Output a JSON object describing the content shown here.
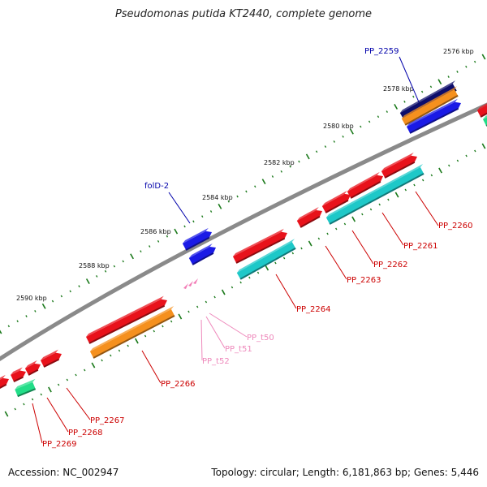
{
  "title": "Pseudomonas putida KT2440, complete genome",
  "footer": {
    "accession": "Accession: NC_002947",
    "summary": "Topology: circular; Length: 6,181,863 bp; Genes: 5,446"
  },
  "colors": {
    "backbone": "#8a8a8a",
    "ticks": "#1c7a1c",
    "gene_red": "#e8121b",
    "gene_orange": "#f5901e",
    "gene_blue": "#1a1ae6",
    "gene_navy": "#0d0d6b",
    "gene_cyan": "#1ec8c8",
    "gene_green": "#22dd88",
    "trna_pink": "#f27bb5",
    "label_red": "#cc0000",
    "label_blue": "#0000aa",
    "label_pink": "#ee88bb"
  },
  "scale": {
    "unit": "kbp",
    "labels": [
      "2576 kbp",
      "2578 kbp",
      "2580 kbp",
      "2582 kbp",
      "2584 kbp",
      "2586 kbp",
      "2588 kbp",
      "2590 kbp"
    ]
  },
  "features": [
    {
      "label": "PP_2259",
      "type": "gene",
      "color": "blue"
    },
    {
      "label": "folD-2",
      "type": "gene",
      "color": "blue"
    },
    {
      "label": "PP_2260",
      "type": "gene",
      "color": "red"
    },
    {
      "label": "PP_2261",
      "type": "gene",
      "color": "red"
    },
    {
      "label": "PP_2262",
      "type": "gene",
      "color": "red"
    },
    {
      "label": "PP_2263",
      "type": "gene",
      "color": "red"
    },
    {
      "label": "PP_2264",
      "type": "gene",
      "color": "red"
    },
    {
      "label": "PP_2266",
      "type": "gene",
      "color": "red"
    },
    {
      "label": "PP_2267",
      "type": "gene",
      "color": "red"
    },
    {
      "label": "PP_2268",
      "type": "gene",
      "color": "red"
    },
    {
      "label": "PP_2269",
      "type": "gene",
      "color": "red"
    },
    {
      "label": "PP_t50",
      "type": "tRNA",
      "color": "pink"
    },
    {
      "label": "PP_t51",
      "type": "tRNA",
      "color": "pink"
    },
    {
      "label": "PP_t52",
      "type": "tRNA",
      "color": "pink"
    }
  ]
}
